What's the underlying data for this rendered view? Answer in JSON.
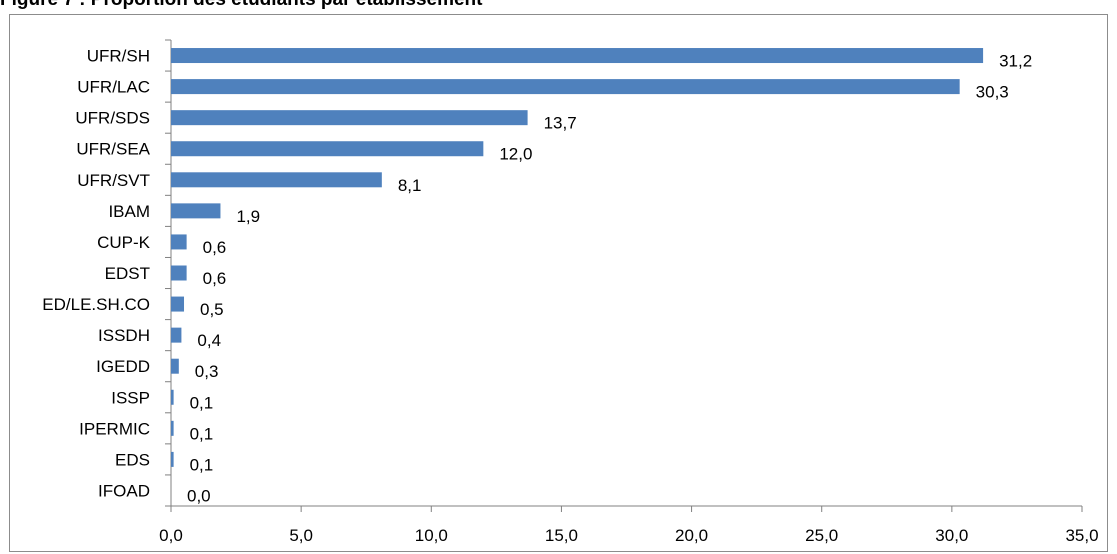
{
  "figure_title": "Figure 7 : Proportion des étudiants par établissement",
  "chart_data": {
    "type": "bar",
    "orientation": "horizontal",
    "categories": [
      "UFR/SH",
      "UFR/LAC",
      "UFR/SDS",
      "UFR/SEA",
      "UFR/SVT",
      "IBAM",
      "CUP-K",
      "EDST",
      "ED/LE.SH.CO",
      "ISSDH",
      "IGEDD",
      "ISSP",
      "IPERMIC",
      "EDS",
      "IFOAD"
    ],
    "values": [
      31.2,
      30.3,
      13.7,
      12.0,
      8.1,
      1.9,
      0.6,
      0.6,
      0.5,
      0.4,
      0.3,
      0.1,
      0.1,
      0.1,
      0.0
    ],
    "value_labels": [
      "31,2",
      "30,3",
      "13,7",
      "12,0",
      "8,1",
      "1,9",
      "0,6",
      "0,6",
      "0,5",
      "0,4",
      "0,3",
      "0,1",
      "0,1",
      "0,1",
      "0,0"
    ],
    "xlim": [
      0,
      35
    ],
    "xticks": [
      0,
      5,
      10,
      15,
      20,
      25,
      30,
      35
    ],
    "xtick_labels": [
      "0,0",
      "5,0",
      "10,0",
      "15,0",
      "20,0",
      "25,0",
      "30,0",
      "35,0"
    ],
    "grid": false,
    "bar_color": "#4f81bd",
    "xlabel": "",
    "ylabel": ""
  }
}
